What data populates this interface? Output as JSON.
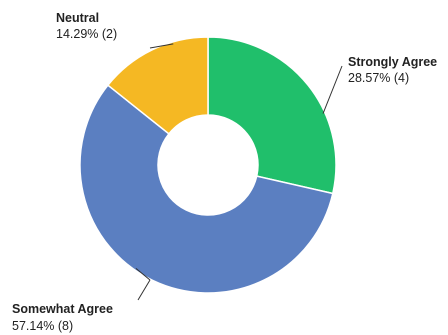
{
  "chart_data": {
    "type": "pie",
    "donut": true,
    "title": "",
    "legend": "none",
    "slices": [
      {
        "label": "Strongly Agree",
        "percent": "28.57%",
        "count": "(4)",
        "value": 4,
        "color": "#20bf6b"
      },
      {
        "label": "Somewhat Agree",
        "percent": "57.14%",
        "count": "(8)",
        "value": 8,
        "color": "#5b7fc1"
      },
      {
        "label": "Neutral",
        "percent": "14.29%",
        "count": "(2)",
        "value": 2,
        "color": "#f5b823"
      }
    ]
  }
}
